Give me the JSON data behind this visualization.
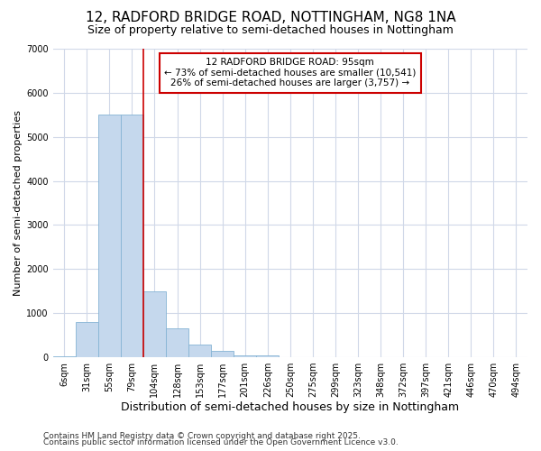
{
  "title1": "12, RADFORD BRIDGE ROAD, NOTTINGHAM, NG8 1NA",
  "title2": "Size of property relative to semi-detached houses in Nottingham",
  "xlabel": "Distribution of semi-detached houses by size in Nottingham",
  "ylabel": "Number of semi-detached properties",
  "footer1": "Contains HM Land Registry data © Crown copyright and database right 2025.",
  "footer2": "Contains public sector information licensed under the Open Government Licence v3.0.",
  "categories": [
    "6sqm",
    "31sqm",
    "55sqm",
    "79sqm",
    "104sqm",
    "128sqm",
    "153sqm",
    "177sqm",
    "201sqm",
    "226sqm",
    "250sqm",
    "275sqm",
    "299sqm",
    "323sqm",
    "348sqm",
    "372sqm",
    "397sqm",
    "421sqm",
    "446sqm",
    "470sqm",
    "494sqm"
  ],
  "values": [
    10,
    800,
    5500,
    5500,
    1500,
    650,
    280,
    150,
    50,
    50,
    5,
    0,
    0,
    0,
    0,
    0,
    0,
    0,
    0,
    0,
    0
  ],
  "bar_color": "#c5d8ed",
  "bar_edge_color": "#85b4d4",
  "property_label": "12 RADFORD BRIDGE ROAD: 95sqm",
  "pct_smaller": 73,
  "count_smaller": 10541,
  "pct_larger": 26,
  "count_larger": 3757,
  "red_line_x": 3.5,
  "ylim": [
    0,
    7000
  ],
  "yticks": [
    0,
    1000,
    2000,
    3000,
    4000,
    5000,
    6000,
    7000
  ],
  "bg_color": "#ffffff",
  "plot_bg_color": "#ffffff",
  "grid_color": "#d0d8e8",
  "annotation_box_color": "#cc0000",
  "title1_fontsize": 11,
  "title2_fontsize": 9,
  "xlabel_fontsize": 9,
  "ylabel_fontsize": 8,
  "tick_fontsize": 7,
  "footer_fontsize": 6.5
}
